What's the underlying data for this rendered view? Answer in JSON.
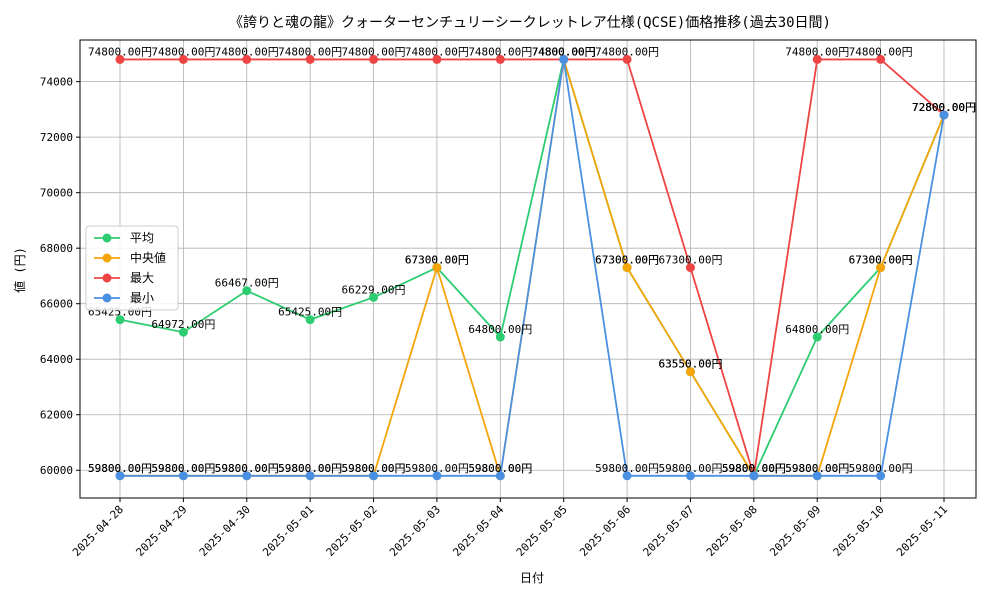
{
  "chart_data": {
    "type": "line",
    "title": "《誇りと魂の龍》クォーターセンチュリーシークレットレア仕様(QCSE)価格推移(過去30日間)",
    "xlabel": "日付",
    "ylabel": "値 (円)",
    "ylim": [
      59000,
      75500
    ],
    "yticks": [
      60000,
      62000,
      64000,
      66000,
      68000,
      70000,
      72000,
      74000
    ],
    "grid": true,
    "legend_position": "center-left",
    "categories": [
      "2025-04-28",
      "2025-04-29",
      "2025-04-30",
      "2025-05-01",
      "2025-05-02",
      "2025-05-03",
      "2025-05-04",
      "2025-05-05",
      "2025-05-06",
      "2025-05-07",
      "2025-05-08",
      "2025-05-09",
      "2025-05-10",
      "2025-05-11"
    ],
    "series": [
      {
        "name": "平均",
        "color": "#2ecc71",
        "values": [
          65425,
          64972,
          66467,
          65425,
          66229,
          67300,
          64800,
          74800,
          67300,
          63550,
          59800,
          64800,
          67300,
          72800
        ],
        "labels": [
          "65425.00円",
          "64972.00円",
          "66467.00円",
          "65425.00円",
          "66229.00円",
          "67300.00円",
          "64800.00円",
          "74800.00円",
          "67300.00円",
          "63550.00円",
          "59800.00円",
          "64800.00円",
          "67300.00円",
          "72800.00円"
        ]
      },
      {
        "name": "中央値",
        "color": "#f5a50a",
        "values": [
          59800,
          59800,
          59800,
          59800,
          59800,
          67300,
          59800,
          74800,
          67300,
          63550,
          59800,
          59800,
          67300,
          72800
        ],
        "labels": [
          "59800.00円",
          "59800.00円",
          "59800.00円",
          "59800.00円",
          "59800.00円",
          "67300.00円",
          "59800.00円",
          "74800.00円",
          "67300.00円",
          "63550.00円",
          "59800.00円",
          "59800.00円",
          "67300.00円",
          "72800.00円"
        ]
      },
      {
        "name": "最大",
        "color": "#ef4444",
        "values": [
          74800,
          74800,
          74800,
          74800,
          74800,
          74800,
          74800,
          74800,
          74800,
          67300,
          59800,
          74800,
          74800,
          72800
        ],
        "labels": [
          "74800.00円",
          "74800.00円",
          "74800.00円",
          "74800.00円",
          "74800.00円",
          "74800.00円",
          "74800.00円",
          "74800.00円",
          "74800.00円",
          "67300.00円",
          "59800.00円",
          "74800.00円",
          "74800.00円",
          "72800.00円"
        ]
      },
      {
        "name": "最小",
        "color": "#4a90e2",
        "values": [
          59800,
          59800,
          59800,
          59800,
          59800,
          59800,
          59800,
          74800,
          59800,
          59800,
          59800,
          59800,
          59800,
          72800
        ],
        "labels": [
          "59800.00円",
          "59800.00円",
          "59800.00円",
          "59800.00円",
          "59800.00円",
          "59800.00円",
          "59800.00円",
          "74800.00円",
          "59800.00円",
          "59800.00円",
          "59800.00円",
          "59800.00円",
          "59800.00円",
          "72800.00円"
        ]
      }
    ]
  }
}
